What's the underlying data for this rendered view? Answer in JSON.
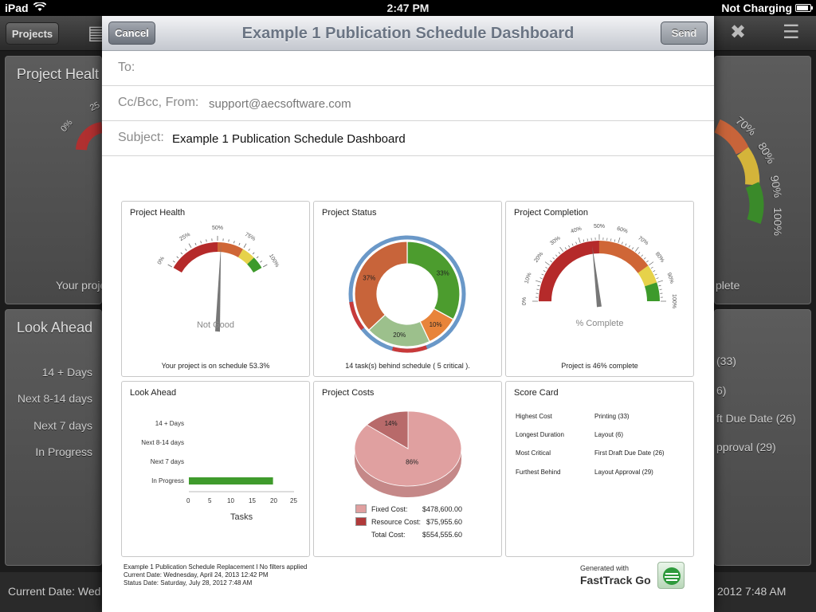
{
  "status_bar": {
    "device": "iPad",
    "time": "2:47 PM",
    "battery_status": "Not Charging"
  },
  "background_app": {
    "projects_button": "Projects",
    "panel_project_health": {
      "title": "Project Healt",
      "text": "Your proje",
      "gauge_labels": [
        "0%",
        "25"
      ]
    },
    "panel_completion": {
      "gauge_labels": [
        "70%",
        "80%",
        "90%",
        "100%"
      ],
      "caption": "plete"
    },
    "look_ahead": {
      "title": "Look Ahead",
      "rows": [
        "14 + Days",
        "Next 8-14 days",
        "Next 7 days",
        "In Progress"
      ]
    },
    "scorecard_partial": [
      "(33)",
      "6)",
      "ft Due Date (26)",
      "pproval (29)"
    ],
    "footer_left": "Current Date: Wed",
    "footer_right": "2012 7:48 AM"
  },
  "compose": {
    "title": "Example 1 Publication Schedule Dashboard",
    "cancel_label": "Cancel",
    "send_label": "Send",
    "to_label": "To:",
    "cc_label": "Cc/Bcc, From:",
    "cc_value": "support@aecsoftware.com",
    "subject_label": "Subject:",
    "subject_value": "Example 1 Publication Schedule Dashboard"
  },
  "report": {
    "project_health": {
      "title": "Project Health",
      "gauge_labels": [
        "0%",
        "25%",
        "50%",
        "75%",
        "100%"
      ],
      "status": "Not Good",
      "caption": "Your project is on schedule 53.3%",
      "value": 53.3
    },
    "project_status": {
      "title": "Project Status",
      "caption": "14 task(s) behind schedule ( 5 critical ).",
      "slices": [
        {
          "label": "33%",
          "value": 33,
          "color": "#4c9c2e"
        },
        {
          "label": "10%",
          "value": 10,
          "color": "#e8843a"
        },
        {
          "label": "20%",
          "value": 20,
          "color": "#9cc08c"
        },
        {
          "label": "37%",
          "value": 37,
          "color": "#c8643a"
        }
      ]
    },
    "project_completion": {
      "title": "Project Completion",
      "gauge_labels": [
        "0%",
        "10%",
        "20%",
        "30%",
        "40%",
        "50%",
        "60%",
        "70%",
        "80%",
        "90%",
        "100%"
      ],
      "status": "% Complete",
      "caption": "Project is 46% complete",
      "value": 46
    },
    "look_ahead": {
      "title": "Look Ahead",
      "categories": [
        "14 + Days",
        "Next 8-14 days",
        "Next 7 days",
        "In Progress"
      ],
      "values": [
        0,
        0,
        0,
        20
      ],
      "ticks": [
        "0",
        "5",
        "10",
        "15",
        "20",
        "25"
      ],
      "xmax": 25,
      "xlabel": "Tasks",
      "bar_color": "#3f9b2c"
    },
    "project_costs": {
      "title": "Project Costs",
      "slices": [
        {
          "label": "86%",
          "value": 86,
          "color": "#e0a0a0"
        },
        {
          "label": "14%",
          "value": 14,
          "color": "#b86a6a"
        }
      ],
      "legend": [
        {
          "label": "Fixed Cost:",
          "value": "$478,600.00",
          "color": "#e0a0a0"
        },
        {
          "label": "Resource Cost:",
          "value": "$75,955.60",
          "color": "#b03a3a"
        },
        {
          "label": "Total Cost:",
          "value": "$554,555.60"
        }
      ]
    },
    "score_card": {
      "title": "Score Card",
      "rows": [
        {
          "label": "Highest Cost",
          "value": "Printing (33)"
        },
        {
          "label": "Longest Duration",
          "value": "Layout (6)"
        },
        {
          "label": "Most Critical",
          "value": "First Draft Due Date (26)"
        },
        {
          "label": "Furthest Behind",
          "value": "Layout Approval (29)"
        }
      ]
    },
    "footer": {
      "line1": "Example 1 Publication Schedule Replacement I No filters applied",
      "line2": "Current Date: Wednesday, April 24, 2013 12:42 PM",
      "line3": "Status Date: Saturday, July 28, 2012 7:48 AM"
    },
    "brand": {
      "generated": "Generated with",
      "name": "FastTrack Go"
    }
  }
}
